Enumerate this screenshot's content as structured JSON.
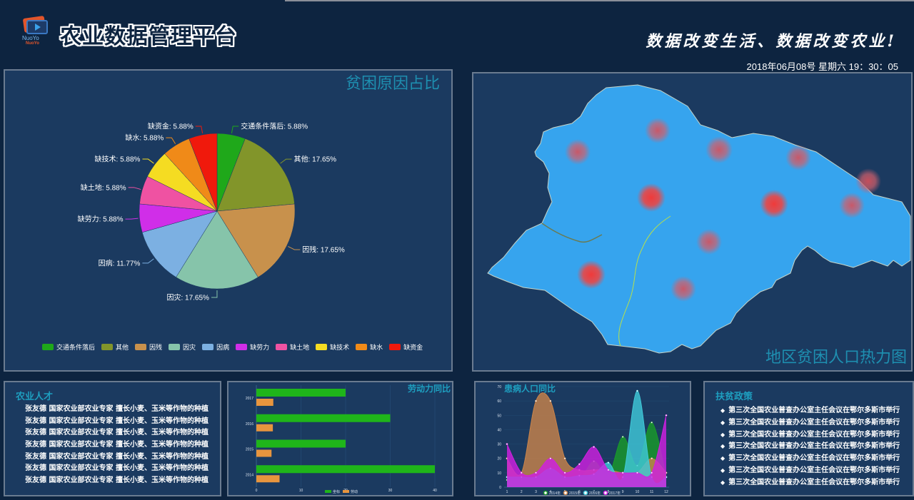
{
  "header": {
    "logo_text_top": "NuoYo",
    "logo_text_bottom": "NuoYo",
    "title": "农业数据管理平台",
    "slogan": "数据改变生活、数据改变农业!",
    "datetime": "2018年06月08号 星期六 19：30：05"
  },
  "colors": {
    "background": "#0d2440",
    "panel": "#1b3a60",
    "panel_title": "#1e8fb0"
  },
  "pie_panel": {
    "title": "贫困原因占比",
    "legend": [
      {
        "label": "交通条件落后",
        "color": "#1fa81a"
      },
      {
        "label": "其他",
        "color": "#82952a"
      },
      {
        "label": "因残",
        "color": "#c8914c"
      },
      {
        "label": "因灾",
        "color": "#86c4aa"
      },
      {
        "label": "因病",
        "color": "#7cb0e2"
      },
      {
        "label": "缺劳力",
        "color": "#d02ee8"
      },
      {
        "label": "缺土地",
        "color": "#ef52a2"
      },
      {
        "label": "缺技术",
        "color": "#f5dc22"
      },
      {
        "label": "缺水",
        "color": "#f08a18"
      },
      {
        "label": "缺资金",
        "color": "#f0190c"
      }
    ],
    "slice_labels": [
      "交通条件落后: 5.88%",
      "其他: 17.65%",
      "因残: 17.65%",
      "因灾: 17.65%",
      "因病: 11.77%",
      "缺劳力: 5.88%",
      "缺土地: 5.88%",
      "缺技术: 5.88%",
      "缺水: 5.88%",
      "缺资金: 5.88%"
    ]
  },
  "map_panel": {
    "title": "地区贫困人口热力图"
  },
  "talent_panel": {
    "title": "农业人才",
    "items": [
      "张友德  国家农业部农业专家  擅长小麦、玉米等作物的种植",
      "张友德  国家农业部农业专家  擅长小麦、玉米等作物的种植",
      "张友德  国家农业部农业专家  擅长小麦、玉米等作物的种植",
      "张友德  国家农业部农业专家  擅长小麦、玉米等作物的种植",
      "张友德  国家农业部农业专家  擅长小麦、玉米等作物的种植",
      "张友德  国家农业部农业专家  擅长小麦、玉米等作物的种植",
      "张友德  国家农业部农业专家  擅长小麦、玉米等作物的种植"
    ]
  },
  "labor_panel": {
    "title": "劳动力同比",
    "legend": [
      "坐标",
      "劳动"
    ]
  },
  "sick_panel": {
    "title": "患病人口同比",
    "legend": [
      "2014年",
      "2015年",
      "2016年",
      "2017年"
    ]
  },
  "policy_panel": {
    "title": "扶贫政策",
    "bullet": "◆",
    "items": [
      "第三次全国农业普查办公室主任会议在鄂尔多斯市举行",
      "第三次全国农业普查办公室主任会议在鄂尔多斯市举行",
      "第三次全国农业普查办公室主任会议在鄂尔多斯市举行",
      "第三次全国农业普查办公室主任会议在鄂尔多斯市举行",
      "第三次全国农业普查办公室主任会议在鄂尔多斯市举行",
      "第三次全国农业普查办公室主任会议在鄂尔多斯市举行",
      "第三次全国农业普查办公室主任会议在鄂尔多斯市举行"
    ]
  },
  "chart_data": [
    {
      "type": "pie",
      "title": "贫困原因占比",
      "categories": [
        "交通条件落后",
        "其他",
        "因残",
        "因灾",
        "因病",
        "缺劳力",
        "缺土地",
        "缺技术",
        "缺水",
        "缺资金"
      ],
      "values": [
        5.88,
        17.65,
        17.65,
        17.65,
        11.77,
        5.88,
        5.88,
        5.88,
        5.88,
        5.88
      ],
      "colors": [
        "#1fa81a",
        "#82952a",
        "#c8914c",
        "#86c4aa",
        "#7cb0e2",
        "#d02ee8",
        "#ef52a2",
        "#f5dc22",
        "#f08a18",
        "#f0190c"
      ],
      "legend_position": "bottom"
    },
    {
      "type": "bar",
      "orientation": "horizontal",
      "title": "劳动力同比",
      "categories": [
        "2014",
        "2015",
        "2016",
        "2017"
      ],
      "series": [
        {
          "name": "坐标",
          "color": "#1fb51a",
          "values": [
            40,
            20,
            30,
            20
          ]
        },
        {
          "name": "劳动",
          "color": "#e8953e",
          "values": [
            5.2,
            3.4,
            3.7,
            3.8
          ]
        }
      ],
      "xlim": [
        0,
        40
      ],
      "xticks": [
        0,
        10,
        20,
        30,
        40
      ],
      "grid": true,
      "legend_position": "bottom"
    },
    {
      "type": "area",
      "title": "患病人口同比",
      "x": [
        1,
        2,
        3,
        4,
        5,
        6,
        7,
        8,
        9,
        10,
        11,
        12
      ],
      "series": [
        {
          "name": "2014年",
          "color": "#1a9a2a",
          "values": [
            5,
            5,
            5,
            5,
            5,
            5,
            18,
            8,
            35,
            15,
            45,
            7
          ]
        },
        {
          "name": "2015年",
          "color": "#c8834a",
          "values": [
            20,
            10,
            60,
            60,
            20,
            12,
            12,
            12,
            10,
            10,
            20,
            10
          ]
        },
        {
          "name": "2016年",
          "color": "#40c8d8",
          "values": [
            7,
            7,
            7,
            13,
            7,
            8,
            9,
            17,
            7,
            67,
            7,
            7
          ]
        },
        {
          "name": "2017年",
          "color": "#d020e0",
          "values": [
            30,
            10,
            10,
            20,
            10,
            16,
            28,
            12,
            10,
            10,
            10,
            50
          ]
        }
      ],
      "ylim": [
        0,
        70
      ],
      "yticks": [
        0,
        10,
        20,
        30,
        40,
        50,
        60,
        70
      ],
      "smooth": true,
      "legend_position": "bottom"
    }
  ]
}
